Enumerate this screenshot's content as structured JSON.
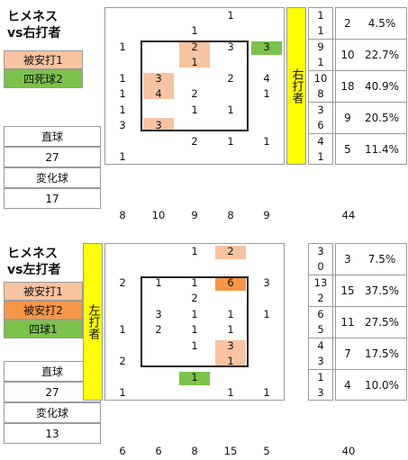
{
  "colors": {
    "hit1": "#f8c3a0",
    "hit2": "#f79646",
    "walk": "#7bc24a",
    "batter_bar": "#ffff00",
    "grid": "#9a9a9a"
  },
  "chart_data": [
    {
      "type": "table",
      "title_line1": "ヒメネス",
      "title_line2": "vs右打者",
      "legend": [
        {
          "label": "被安打1",
          "color": "hit1"
        },
        {
          "label": "四死球2",
          "color": "walk"
        }
      ],
      "pitch_types": [
        {
          "label": "直球",
          "count": "27"
        },
        {
          "label": "変化球",
          "count": "17"
        }
      ],
      "batter_label": "右打者",
      "zone_rows": [
        {
          "top": [
            "",
            "",
            "",
            "1",
            ""
          ],
          "bottom": [
            "",
            "",
            "1",
            "",
            ""
          ],
          "hl": [
            "",
            "",
            "",
            "",
            ""
          ]
        },
        {
          "top": [
            "1",
            "",
            "2",
            "3",
            "3"
          ],
          "bottom": [
            "",
            "",
            "1",
            "",
            ""
          ],
          "hl": [
            "",
            "",
            "hit1",
            "",
            "walk"
          ]
        },
        {
          "top": [
            "1",
            "3",
            "",
            "2",
            "4"
          ],
          "bottom": [
            "1",
            "4",
            "2",
            "",
            "1"
          ],
          "hl": [
            "",
            "hit1",
            "",
            "",
            ""
          ]
        },
        {
          "top": [
            "1",
            "",
            "1",
            "1",
            ""
          ],
          "bottom": [
            "3",
            "3",
            "",
            "",
            ""
          ],
          "hl": [
            "",
            "hit1b",
            "",
            "",
            ""
          ]
        },
        {
          "top": [
            "",
            "",
            "2",
            "1",
            "1"
          ],
          "bottom": [
            "1",
            "",
            "",
            "",
            ""
          ],
          "hl": [
            "",
            "",
            "",
            "",
            ""
          ]
        }
      ],
      "column_totals": [
        "8",
        "10",
        "9",
        "8",
        "9"
      ],
      "row_splits": [
        [
          "1",
          "1"
        ],
        [
          "9",
          "1"
        ],
        [
          "10",
          "8"
        ],
        [
          "3",
          "6"
        ],
        [
          "4",
          "1"
        ]
      ],
      "row_totals": [
        "2",
        "10",
        "18",
        "9",
        "5"
      ],
      "row_pcts": [
        "4.5%",
        "22.7%",
        "40.9%",
        "20.5%",
        "11.4%"
      ],
      "grand_total": "44"
    },
    {
      "type": "table",
      "title_line1": "ヒメネス",
      "title_line2": "vs左打者",
      "legend": [
        {
          "label": "被安打1",
          "color": "hit1"
        },
        {
          "label": "被安打2",
          "color": "hit2"
        },
        {
          "label": "四球1",
          "color": "walk"
        }
      ],
      "pitch_types": [
        {
          "label": "直球",
          "count": "27"
        },
        {
          "label": "変化球",
          "count": "13"
        }
      ],
      "batter_label": "左打者",
      "zone_rows": [
        {
          "top": [
            "",
            "",
            "1",
            "2",
            ""
          ],
          "bottom": [
            "",
            "",
            "",
            "",
            ""
          ],
          "hl": [
            "",
            "",
            "",
            "hit1",
            ""
          ]
        },
        {
          "top": [
            "2",
            "1",
            "1",
            "6",
            "3"
          ],
          "bottom": [
            "",
            "",
            "2",
            "",
            ""
          ],
          "hl": [
            "",
            "",
            "",
            "hit2",
            ""
          ]
        },
        {
          "top": [
            "",
            "3",
            "1",
            "1",
            "1"
          ],
          "bottom": [
            "1",
            "2",
            "1",
            "1",
            ""
          ],
          "hl": [
            "",
            "",
            "",
            "",
            ""
          ]
        },
        {
          "top": [
            "",
            "",
            "1",
            "3",
            ""
          ],
          "bottom": [
            "2",
            "",
            "",
            "1",
            ""
          ],
          "hl": [
            "",
            "",
            "",
            "hit1",
            ""
          ]
        },
        {
          "top": [
            "",
            "",
            "1",
            "",
            ""
          ],
          "bottom": [
            "1",
            "",
            "",
            "1",
            "1"
          ],
          "hl": [
            "",
            "",
            "walk",
            "",
            ""
          ]
        }
      ],
      "column_totals": [
        "6",
        "6",
        "8",
        "15",
        "5"
      ],
      "row_splits": [
        [
          "3",
          "0"
        ],
        [
          "13",
          "2"
        ],
        [
          "6",
          "5"
        ],
        [
          "4",
          "3"
        ],
        [
          "1",
          "3"
        ]
      ],
      "row_totals": [
        "3",
        "15",
        "11",
        "7",
        "4"
      ],
      "row_pcts": [
        "7.5%",
        "37.5%",
        "27.5%",
        "17.5%",
        "10.0%"
      ],
      "grand_total": "40"
    }
  ]
}
